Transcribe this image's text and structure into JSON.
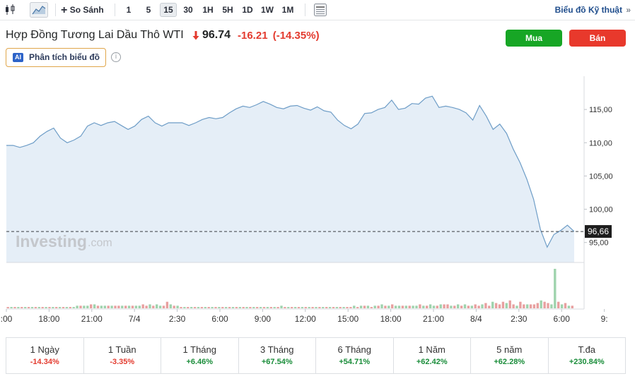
{
  "toolbar": {
    "compare_label": "So Sánh",
    "intervals": [
      "1",
      "5",
      "15",
      "30",
      "1H",
      "5H",
      "1D",
      "1W",
      "1M"
    ],
    "active_interval": "15",
    "tech_chart_label": "Biểu đồ Kỹ thuật"
  },
  "header": {
    "title": "Hợp Đồng Tương Lai Dầu Thô WTI",
    "price": "96.74",
    "change": "-16.21",
    "change_pct": "(-14.35%)",
    "buy_label": "Mua",
    "sell_label": "Bán",
    "ai_badge": "AI",
    "ai_label": "Phân tích biểu đồ",
    "colors": {
      "buy": "#17a625",
      "sell": "#e8392c",
      "negative": "#e33b2f",
      "positive": "#1a8d3a"
    }
  },
  "chart_data": {
    "type": "area",
    "x_ticks": [
      ":00",
      "18:00",
      "21:00",
      "7/4",
      "2:30",
      "6:00",
      "9:00",
      "12:00",
      "15:00",
      "18:00",
      "21:00",
      "8/4",
      "2:30",
      "6:00",
      "9:"
    ],
    "y_ticks": [
      "115,00",
      "110,00",
      "105,00",
      "100,00",
      "95,00"
    ],
    "ylim": [
      92,
      120
    ],
    "current_value_label": "96,66",
    "current_value": 96.66,
    "watermark_main": "Investing",
    "watermark_sub": ".com",
    "price_series": [
      109.6,
      109.6,
      109.3,
      109.6,
      110.0,
      111.0,
      111.7,
      112.2,
      110.7,
      110.0,
      110.4,
      111.0,
      112.5,
      113.0,
      112.6,
      113.0,
      113.2,
      112.6,
      112.0,
      112.5,
      113.5,
      114.0,
      113.0,
      112.5,
      113.0,
      113.0,
      113.0,
      112.6,
      113.0,
      113.5,
      113.8,
      113.6,
      113.8,
      114.5,
      115.1,
      115.5,
      115.3,
      115.7,
      116.2,
      115.8,
      115.3,
      115.1,
      115.5,
      115.6,
      115.2,
      114.9,
      115.4,
      114.8,
      114.6,
      113.4,
      112.6,
      112.1,
      112.8,
      114.4,
      114.5,
      115.0,
      115.3,
      116.4,
      115.0,
      115.2,
      115.9,
      115.8,
      116.7,
      117.0,
      115.3,
      115.5,
      115.3,
      115.0,
      114.5,
      113.4,
      115.6,
      114.0,
      112.0,
      112.8,
      111.4,
      109.0,
      107.0,
      104.5,
      101.5,
      97.0,
      94.3,
      96.2,
      96.8,
      97.6,
      96.66
    ],
    "volume_series": [
      1,
      1,
      1,
      1,
      1,
      1,
      1,
      1,
      1,
      1,
      1,
      1,
      1,
      1,
      1,
      1,
      1,
      1,
      1,
      1,
      2,
      2,
      2,
      2,
      3,
      3,
      2,
      2,
      2,
      2,
      2,
      2,
      2,
      2,
      2,
      2,
      2,
      2,
      2,
      3,
      2,
      3,
      2,
      3,
      2,
      2,
      5,
      3,
      2,
      2,
      1,
      1,
      1,
      1,
      1,
      1,
      1,
      1,
      1,
      1,
      1,
      1,
      1,
      1,
      1,
      1,
      1,
      1,
      1,
      1,
      1,
      1,
      1,
      1,
      1,
      1,
      1,
      1,
      1,
      2,
      1,
      1,
      1,
      1,
      1,
      1,
      1,
      1,
      1,
      1,
      1,
      1,
      1,
      1,
      1,
      1,
      1,
      1,
      1,
      1,
      2,
      1,
      2,
      2,
      2,
      1,
      2,
      2,
      3,
      2,
      2,
      3,
      2,
      2,
      2,
      2,
      2,
      2,
      2,
      3,
      2,
      2,
      3,
      2,
      2,
      3,
      3,
      3,
      2,
      2,
      3,
      2,
      3,
      2,
      2,
      3,
      2,
      3,
      4,
      2,
      5,
      4,
      3,
      5,
      4,
      6,
      3,
      2,
      5,
      3,
      3,
      3,
      3,
      4,
      6,
      5,
      4,
      3,
      30,
      5,
      3,
      4,
      2,
      2
    ],
    "volume_up": [
      false,
      true,
      false,
      true,
      false,
      true,
      false,
      true,
      false,
      true,
      false,
      true,
      false,
      true,
      false,
      true,
      false,
      true,
      false,
      true,
      true,
      false,
      true,
      true,
      false,
      true,
      false,
      true,
      true,
      false,
      true,
      false,
      false,
      true,
      false,
      true,
      false,
      true,
      true,
      false,
      false,
      true,
      false,
      true,
      true,
      false,
      false,
      true,
      false,
      true,
      false,
      true,
      false,
      true,
      false,
      true,
      false,
      true,
      false,
      true,
      false,
      true,
      false,
      true,
      false,
      true,
      false,
      true,
      false,
      true,
      false,
      true,
      false,
      true,
      false,
      true,
      false,
      true,
      false,
      true,
      false,
      true,
      false,
      true,
      false,
      true,
      false,
      true,
      false,
      true,
      false,
      true,
      false,
      true,
      false,
      true,
      false,
      true,
      false,
      false,
      true,
      false,
      true,
      false,
      true,
      false,
      true,
      false,
      true,
      false,
      true,
      false,
      true,
      true,
      false,
      true,
      false,
      true,
      true,
      false,
      true,
      false,
      true,
      true,
      false,
      true,
      false,
      false,
      true,
      false,
      true,
      false,
      true,
      false,
      true,
      false,
      false,
      true,
      false,
      false,
      true,
      false,
      false,
      false,
      true,
      false,
      false,
      true,
      false,
      false,
      true,
      false,
      false,
      false,
      true,
      false,
      false,
      true,
      true,
      false,
      true,
      false,
      true,
      false
    ]
  },
  "performance": [
    {
      "label": "1 Ngày",
      "value": "-14.34%",
      "positive": false
    },
    {
      "label": "1 Tuần",
      "value": "-3.35%",
      "positive": false
    },
    {
      "label": "1 Tháng",
      "value": "+6.46%",
      "positive": true
    },
    {
      "label": "3 Tháng",
      "value": "+67.54%",
      "positive": true
    },
    {
      "label": "6 Tháng",
      "value": "+54.71%",
      "positive": true
    },
    {
      "label": "1 Năm",
      "value": "+62.42%",
      "positive": true
    },
    {
      "label": "5 năm",
      "value": "+62.28%",
      "positive": true
    },
    {
      "label": "T.đa",
      "value": "+230.84%",
      "positive": true
    }
  ]
}
